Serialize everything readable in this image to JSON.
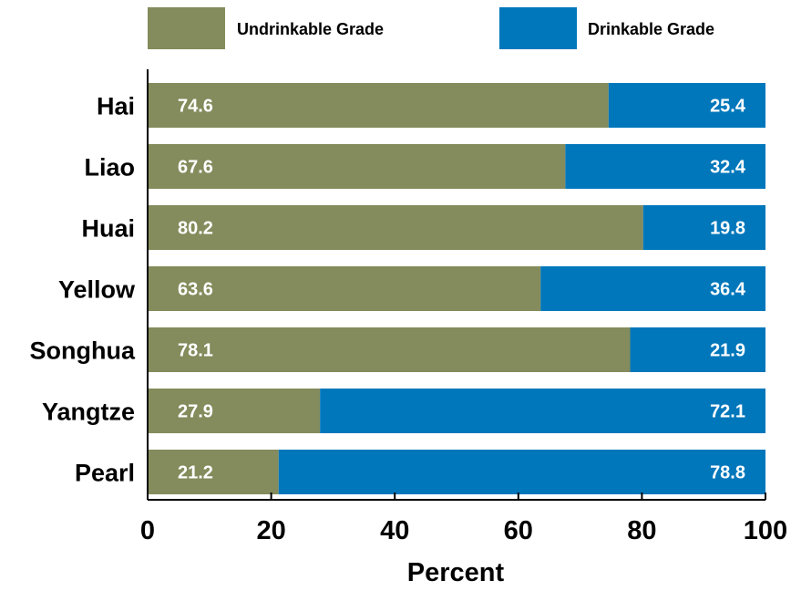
{
  "chart_data": {
    "type": "bar",
    "orientation": "horizontal",
    "stacked": true,
    "categories": [
      "Hai",
      "Liao",
      "Huai",
      "Yellow",
      "Songhua",
      "Yangtze",
      "Pearl"
    ],
    "series": [
      {
        "name": "Undrinkable Grade",
        "color": "#848b5c",
        "values": [
          74.6,
          67.6,
          80.2,
          63.6,
          78.1,
          27.9,
          21.2
        ],
        "labels": [
          "74.6",
          "67.6",
          "80.2",
          "63.6",
          "78.1",
          "27.9",
          "21.2"
        ]
      },
      {
        "name": "Drinkable Grade",
        "color": "#0077bb",
        "values": [
          25.4,
          32.4,
          19.8,
          36.4,
          21.9,
          72.1,
          78.8
        ],
        "labels": [
          "25.4",
          "32.4",
          "19.8",
          "36.4",
          "21.9",
          "72.1",
          "78.8"
        ]
      }
    ],
    "xlabel": "Percent",
    "xlim": [
      0,
      100
    ],
    "xticks": [
      0,
      20,
      40,
      60,
      80,
      100
    ],
    "xtick_labels": [
      "0",
      "20",
      "40",
      "60",
      "80",
      "100"
    ],
    "grid": false,
    "legend_position": "top"
  }
}
